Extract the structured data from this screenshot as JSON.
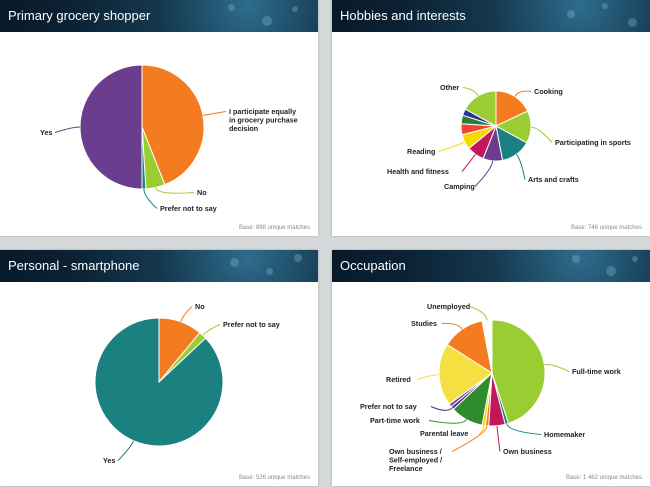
{
  "panels": [
    {
      "title": "Primary grocery shopper",
      "base": "Base: 898 unique matches"
    },
    {
      "title": "Hobbies and interests",
      "base": "Base: 746 unique matches"
    },
    {
      "title": "Personal - smartphone",
      "base": "Base: 526 unique matches"
    },
    {
      "title": "Occupation",
      "base": "Base: 1 462 unique matches"
    }
  ],
  "chart_data": [
    {
      "type": "pie",
      "title": "Primary grocery shopper",
      "categories": [
        "I participate equally in grocery purchase decision",
        "No",
        "Prefer not to say",
        "Yes"
      ],
      "values": [
        44,
        5,
        1,
        50
      ],
      "colors": [
        "#f47b20",
        "#9acd32",
        "#1a8080",
        "#6a3d8f"
      ]
    },
    {
      "type": "pie",
      "title": "Hobbies and interests",
      "categories": [
        "Cooking",
        "Participating in sports",
        "Arts and crafts",
        "Camping",
        "Health and fitness",
        "Reading",
        "",
        "",
        "",
        "Other"
      ],
      "values": [
        18,
        15,
        14,
        9,
        8,
        7,
        5,
        4,
        3,
        17
      ],
      "colors": [
        "#f47b20",
        "#9acd32",
        "#1a8080",
        "#6a3d8f",
        "#c2185b",
        "#f5d800",
        "#f44336",
        "#2e7d32",
        "#283593",
        "#9acd32"
      ]
    },
    {
      "type": "pie",
      "title": "Personal - smartphone",
      "categories": [
        "No",
        "Prefer not to say",
        "Yes"
      ],
      "values": [
        11,
        2,
        87
      ],
      "colors": [
        "#f47b20",
        "#9acd32",
        "#1a8080"
      ]
    },
    {
      "type": "pie",
      "title": "Occupation",
      "categories": [
        "Full-time work",
        "Homemaker",
        "Own business",
        "Own business / Self-employed / Freelance",
        "Parental leave",
        "Part-time work",
        "Prefer not to say",
        "",
        "Retired",
        "Studies",
        "Unemployed"
      ],
      "values": [
        45,
        1,
        5,
        1,
        1,
        10,
        1,
        1,
        19,
        13,
        3
      ],
      "colors": [
        "#9acd32",
        "#1a8080",
        "#c2185b",
        "#f47b20",
        "#f5d800",
        "#2e8b2e",
        "#4a2a8a",
        "#7d3f98",
        "#f5e042",
        "#f47b20",
        "#ffffff"
      ]
    }
  ]
}
